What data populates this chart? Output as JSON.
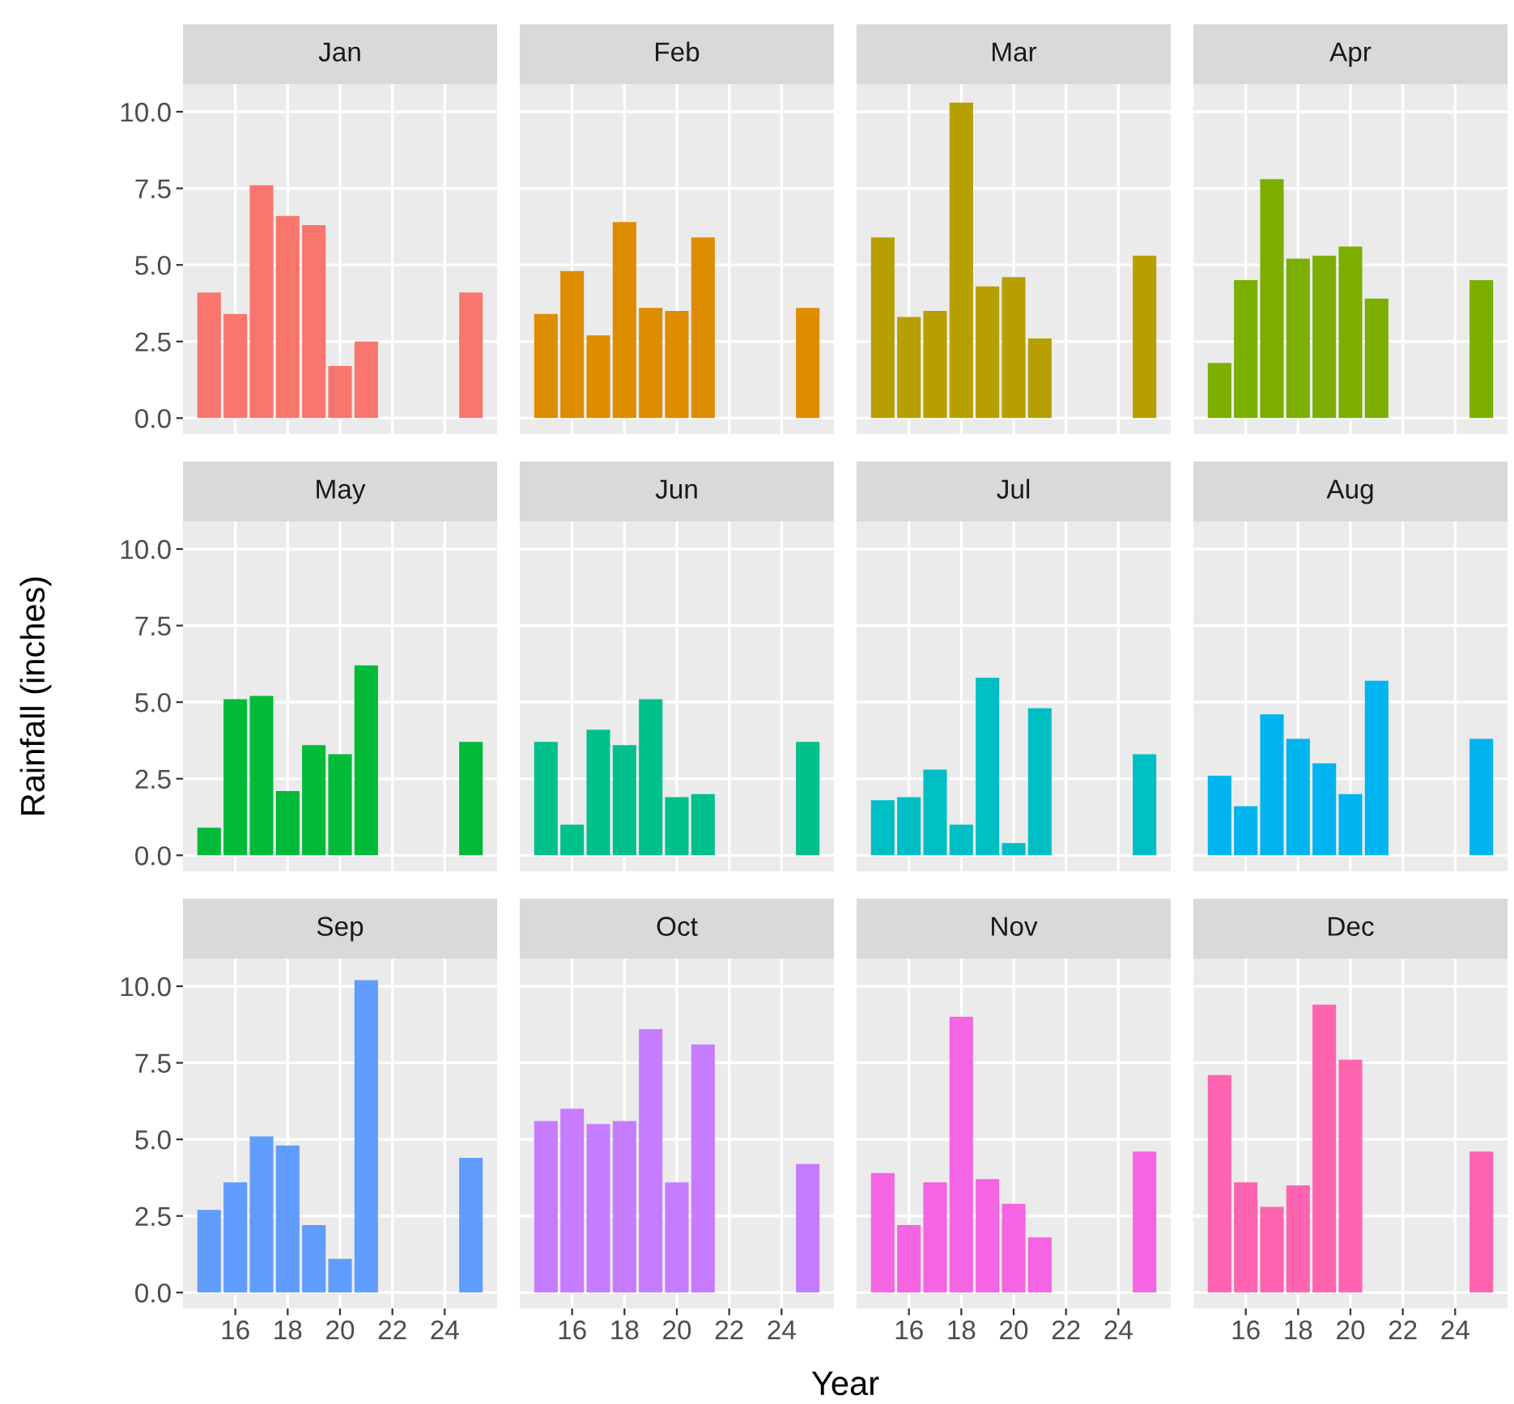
{
  "chart_data": [
    {
      "type": "bar",
      "title": "Jan",
      "x": [
        15,
        16,
        17,
        18,
        19,
        20,
        21,
        25
      ],
      "values": [
        4.1,
        3.4,
        7.6,
        6.6,
        6.3,
        1.7,
        2.5,
        4.1
      ],
      "color": "#f8766d",
      "xlim": [
        14,
        26
      ],
      "ylim": [
        -0.52,
        10.9
      ],
      "xticks": [
        {
          "value": 16,
          "label": null
        },
        {
          "value": 18,
          "label": null
        },
        {
          "value": 20,
          "label": null
        },
        {
          "value": 22,
          "label": null
        },
        {
          "value": 24,
          "label": null
        }
      ],
      "yticks": [
        {
          "value": 0,
          "label": "0.0"
        },
        {
          "value": 2.5,
          "label": "2.5"
        },
        {
          "value": 5,
          "label": "5.0"
        },
        {
          "value": 7.5,
          "label": "7.5"
        },
        {
          "value": 10,
          "label": "10.0"
        }
      ],
      "grid": true,
      "tick_labels": "y"
    },
    {
      "type": "bar",
      "title": "Feb",
      "x": [
        15,
        16,
        17,
        18,
        19,
        20,
        21,
        25
      ],
      "values": [
        3.4,
        4.8,
        2.7,
        6.4,
        3.6,
        3.5,
        5.9,
        3.6
      ],
      "color": "#de8c00",
      "xlim": [
        14,
        26
      ],
      "ylim": [
        -0.52,
        10.9
      ],
      "xticks": [
        {
          "value": 16,
          "label": null
        },
        {
          "value": 18,
          "label": null
        },
        {
          "value": 20,
          "label": null
        },
        {
          "value": 22,
          "label": null
        },
        {
          "value": 24,
          "label": null
        }
      ],
      "yticks": [
        {
          "value": 0,
          "label": null
        },
        {
          "value": 2.5,
          "label": null
        },
        {
          "value": 5,
          "label": null
        },
        {
          "value": 7.5,
          "label": null
        },
        {
          "value": 10,
          "label": null
        }
      ],
      "grid": true,
      "tick_labels": false
    },
    {
      "type": "bar",
      "title": "Mar",
      "x": [
        15,
        16,
        17,
        18,
        19,
        20,
        21,
        25
      ],
      "values": [
        5.9,
        3.3,
        3.5,
        10.3,
        4.3,
        4.6,
        2.6,
        5.3
      ],
      "color": "#b79f00",
      "xlim": [
        14,
        26
      ],
      "ylim": [
        -0.52,
        10.9
      ],
      "xticks": [
        {
          "value": 16,
          "label": null
        },
        {
          "value": 18,
          "label": null
        },
        {
          "value": 20,
          "label": null
        },
        {
          "value": 22,
          "label": null
        },
        {
          "value": 24,
          "label": null
        }
      ],
      "yticks": [
        {
          "value": 0,
          "label": null
        },
        {
          "value": 2.5,
          "label": null
        },
        {
          "value": 5,
          "label": null
        },
        {
          "value": 7.5,
          "label": null
        },
        {
          "value": 10,
          "label": null
        }
      ],
      "grid": true,
      "tick_labels": false
    },
    {
      "type": "bar",
      "title": "Apr",
      "x": [
        15,
        16,
        17,
        18,
        19,
        20,
        21,
        25
      ],
      "values": [
        1.8,
        4.5,
        7.8,
        5.2,
        5.3,
        5.6,
        3.9,
        4.5
      ],
      "color": "#7cae00",
      "xlim": [
        14,
        26
      ],
      "ylim": [
        -0.52,
        10.9
      ],
      "xticks": [
        {
          "value": 16,
          "label": null
        },
        {
          "value": 18,
          "label": null
        },
        {
          "value": 20,
          "label": null
        },
        {
          "value": 22,
          "label": null
        },
        {
          "value": 24,
          "label": null
        }
      ],
      "yticks": [
        {
          "value": 0,
          "label": null
        },
        {
          "value": 2.5,
          "label": null
        },
        {
          "value": 5,
          "label": null
        },
        {
          "value": 7.5,
          "label": null
        },
        {
          "value": 10,
          "label": null
        }
      ],
      "grid": true,
      "tick_labels": false
    },
    {
      "type": "bar",
      "title": "May",
      "ylabel": "Rainfall (inches)",
      "x": [
        15,
        16,
        17,
        18,
        19,
        20,
        21,
        25
      ],
      "values": [
        0.9,
        5.1,
        5.2,
        2.1,
        3.6,
        3.3,
        6.2,
        3.7
      ],
      "color": "#00ba38",
      "xlim": [
        14,
        26
      ],
      "ylim": [
        -0.52,
        10.9
      ],
      "xticks": [
        {
          "value": 16,
          "label": null
        },
        {
          "value": 18,
          "label": null
        },
        {
          "value": 20,
          "label": null
        },
        {
          "value": 22,
          "label": null
        },
        {
          "value": 24,
          "label": null
        }
      ],
      "yticks": [
        {
          "value": 0,
          "label": "0.0"
        },
        {
          "value": 2.5,
          "label": "2.5"
        },
        {
          "value": 5,
          "label": "5.0"
        },
        {
          "value": 7.5,
          "label": "7.5"
        },
        {
          "value": 10,
          "label": "10.0"
        }
      ],
      "grid": true,
      "tick_labels": "y"
    },
    {
      "type": "bar",
      "title": "Jun",
      "x": [
        15,
        16,
        17,
        18,
        19,
        20,
        21,
        25
      ],
      "values": [
        3.7,
        1.0,
        4.1,
        3.6,
        5.1,
        1.9,
        2.0,
        3.7
      ],
      "color": "#00c08b",
      "xlim": [
        14,
        26
      ],
      "ylim": [
        -0.52,
        10.9
      ],
      "xticks": [
        {
          "value": 16,
          "label": null
        },
        {
          "value": 18,
          "label": null
        },
        {
          "value": 20,
          "label": null
        },
        {
          "value": 22,
          "label": null
        },
        {
          "value": 24,
          "label": null
        }
      ],
      "yticks": [
        {
          "value": 0,
          "label": null
        },
        {
          "value": 2.5,
          "label": null
        },
        {
          "value": 5,
          "label": null
        },
        {
          "value": 7.5,
          "label": null
        },
        {
          "value": 10,
          "label": null
        }
      ],
      "grid": true,
      "tick_labels": false
    },
    {
      "type": "bar",
      "title": "Jul",
      "x": [
        15,
        16,
        17,
        18,
        19,
        20,
        21,
        25
      ],
      "values": [
        1.8,
        1.9,
        2.8,
        1.0,
        5.8,
        0.4,
        4.8,
        3.3
      ],
      "color": "#00bfc4",
      "xlim": [
        14,
        26
      ],
      "ylim": [
        -0.52,
        10.9
      ],
      "xticks": [
        {
          "value": 16,
          "label": null
        },
        {
          "value": 18,
          "label": null
        },
        {
          "value": 20,
          "label": null
        },
        {
          "value": 22,
          "label": null
        },
        {
          "value": 24,
          "label": null
        }
      ],
      "yticks": [
        {
          "value": 0,
          "label": null
        },
        {
          "value": 2.5,
          "label": null
        },
        {
          "value": 5,
          "label": null
        },
        {
          "value": 7.5,
          "label": null
        },
        {
          "value": 10,
          "label": null
        }
      ],
      "grid": true,
      "tick_labels": false
    },
    {
      "type": "bar",
      "title": "Aug",
      "x": [
        15,
        16,
        17,
        18,
        19,
        20,
        21,
        25
      ],
      "values": [
        2.6,
        1.6,
        4.6,
        3.8,
        3.0,
        2.0,
        5.7,
        3.8
      ],
      "color": "#00b4f0",
      "xlim": [
        14,
        26
      ],
      "ylim": [
        -0.52,
        10.9
      ],
      "xticks": [
        {
          "value": 16,
          "label": null
        },
        {
          "value": 18,
          "label": null
        },
        {
          "value": 20,
          "label": null
        },
        {
          "value": 22,
          "label": null
        },
        {
          "value": 24,
          "label": null
        }
      ],
      "yticks": [
        {
          "value": 0,
          "label": null
        },
        {
          "value": 2.5,
          "label": null
        },
        {
          "value": 5,
          "label": null
        },
        {
          "value": 7.5,
          "label": null
        },
        {
          "value": 10,
          "label": null
        }
      ],
      "grid": true,
      "tick_labels": false
    },
    {
      "type": "bar",
      "title": "Sep",
      "x": [
        15,
        16,
        17,
        18,
        19,
        20,
        21,
        25
      ],
      "values": [
        2.7,
        3.6,
        5.1,
        4.8,
        2.2,
        1.1,
        10.2,
        4.4
      ],
      "color": "#619cff",
      "xlim": [
        14,
        26
      ],
      "ylim": [
        -0.52,
        10.9
      ],
      "xticks": [
        16,
        18,
        20,
        22,
        24
      ],
      "yticks": [
        {
          "value": 0,
          "label": "0.0"
        },
        {
          "value": 2.5,
          "label": "2.5"
        },
        {
          "value": 5,
          "label": "5.0"
        },
        {
          "value": 7.5,
          "label": "7.5"
        },
        {
          "value": 10,
          "label": "10.0"
        }
      ],
      "grid": true
    },
    {
      "type": "bar",
      "title": "Oct",
      "xlabel": "Year",
      "x": [
        15,
        16,
        17,
        18,
        19,
        20,
        21,
        25
      ],
      "values": [
        5.6,
        6.0,
        5.5,
        5.6,
        8.6,
        3.6,
        8.1,
        4.2
      ],
      "color": "#c77cff",
      "xlim": [
        14,
        26
      ],
      "ylim": [
        -0.52,
        10.9
      ],
      "xticks": [
        16,
        18,
        20,
        22,
        24
      ],
      "yticks": [
        {
          "value": 0,
          "label": null
        },
        {
          "value": 2.5,
          "label": null
        },
        {
          "value": 5,
          "label": null
        },
        {
          "value": 7.5,
          "label": null
        },
        {
          "value": 10,
          "label": null
        }
      ],
      "grid": true,
      "tick_labels": "x"
    },
    {
      "type": "bar",
      "title": "Nov",
      "x": [
        15,
        16,
        17,
        18,
        19,
        20,
        21,
        25
      ],
      "values": [
        3.9,
        2.2,
        3.6,
        9.0,
        3.7,
        2.9,
        1.8,
        4.6
      ],
      "color": "#f564e3",
      "xlim": [
        14,
        26
      ],
      "ylim": [
        -0.52,
        10.9
      ],
      "xticks": [
        16,
        18,
        20,
        22,
        24
      ],
      "yticks": [
        {
          "value": 0,
          "label": null
        },
        {
          "value": 2.5,
          "label": null
        },
        {
          "value": 5,
          "label": null
        },
        {
          "value": 7.5,
          "label": null
        },
        {
          "value": 10,
          "label": null
        }
      ],
      "grid": true,
      "tick_labels": "x"
    },
    {
      "type": "bar",
      "title": "Dec",
      "x": [
        15,
        16,
        17,
        18,
        19,
        20,
        25
      ],
      "values": [
        7.1,
        3.6,
        2.8,
        3.5,
        9.4,
        7.6,
        4.6
      ],
      "color": "#ff64b0",
      "xlim": [
        14,
        26
      ],
      "ylim": [
        -0.52,
        10.9
      ],
      "xticks": [
        16,
        18,
        20,
        22,
        24
      ],
      "yticks": [
        {
          "value": 0,
          "label": null
        },
        {
          "value": 2.5,
          "label": null
        },
        {
          "value": 5,
          "label": null
        },
        {
          "value": 7.5,
          "label": null
        },
        {
          "value": 10,
          "label": null
        }
      ],
      "grid": true,
      "tick_labels": "x"
    }
  ]
}
